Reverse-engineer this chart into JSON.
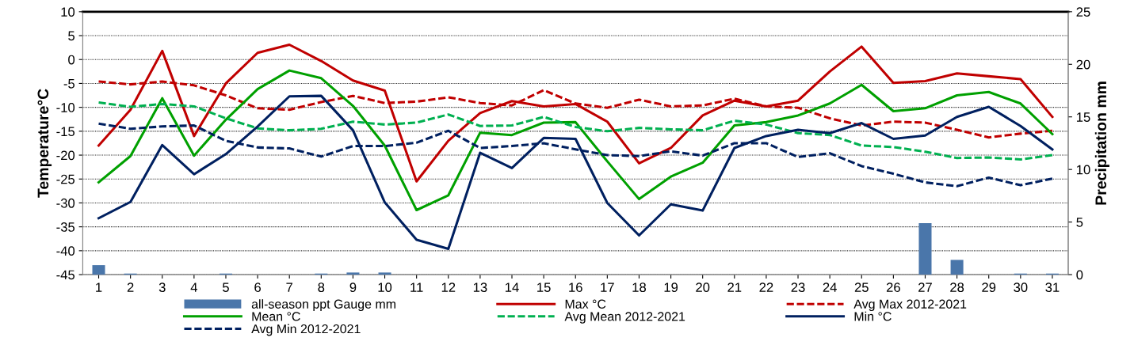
{
  "chart_data": {
    "type": "line",
    "ylabel": "Temperature°C",
    "y2label": "Precipitation mm",
    "categories": [
      "1",
      "2",
      "3",
      "4",
      "5",
      "6",
      "7",
      "8",
      "9",
      "10",
      "11",
      "12",
      "13",
      "14",
      "15",
      "16",
      "17",
      "18",
      "19",
      "20",
      "21",
      "22",
      "23",
      "24",
      "25",
      "26",
      "27",
      "28",
      "29",
      "30",
      "31"
    ],
    "ylim": [
      -45,
      10
    ],
    "yticks": [
      -45,
      -40,
      -35,
      -30,
      -25,
      -20,
      -15,
      -10,
      -5,
      0,
      5,
      10
    ],
    "y2lim": [
      0,
      25
    ],
    "y2ticks": [
      0,
      5,
      10,
      15,
      20,
      25
    ],
    "grid": "y",
    "legend": "bottom",
    "series": [
      {
        "name": "all-season ppt Gauge mm",
        "type": "bar",
        "axis": "y2",
        "color": "#4a76aa",
        "values": [
          0.9,
          0.1,
          0,
          0,
          0.1,
          0,
          0,
          0.1,
          0.2,
          0.2,
          0,
          0,
          0,
          0,
          0,
          0,
          0,
          0,
          0,
          0,
          0,
          0,
          0,
          0,
          0,
          0,
          4.9,
          1.4,
          0,
          0.1,
          0.1
        ]
      },
      {
        "name": "Max °C",
        "color": "#c00000",
        "line_style": "solid",
        "values": [
          -18,
          -10.5,
          1.8,
          -16,
          -5,
          1.4,
          3.1,
          -0.3,
          -4.4,
          -6.5,
          -25.5,
          -17,
          -11.2,
          -8.7,
          -9.8,
          -9.3,
          -13,
          -21.7,
          -18.5,
          -11.7,
          -8.6,
          -9.8,
          -8.6,
          -2.5,
          2.7,
          -4.9,
          -4.5,
          -2.9,
          -3.5,
          -4.1,
          -12
        ]
      },
      {
        "name": "Avg Max 2012-2021",
        "color": "#c00000",
        "line_style": "dashed",
        "values": [
          -4.6,
          -5.2,
          -4.6,
          -5.4,
          -7.5,
          -10.2,
          -10.5,
          -8.9,
          -7.6,
          -9.1,
          -8.8,
          -7.9,
          -9.1,
          -9.6,
          -6.4,
          -9.2,
          -10.1,
          -8.4,
          -9.8,
          -9.6,
          -8.2,
          -9.8,
          -10.1,
          -12.3,
          -13.8,
          -13,
          -13.2,
          -14.7,
          -16.3,
          -15.5,
          -14.9
        ]
      },
      {
        "name": "Mean °C",
        "color": "#00a000",
        "line_style": "solid",
        "values": [
          -25.7,
          -20.2,
          -8.1,
          -20.1,
          -12.6,
          -6.2,
          -2.3,
          -3.9,
          -9.7,
          -18,
          -31.5,
          -28.4,
          -15.3,
          -15.8,
          -13.2,
          -13.1,
          -21.3,
          -29.2,
          -24.5,
          -21.6,
          -13.8,
          -13.1,
          -11.7,
          -9.2,
          -5.3,
          -10.8,
          -10.2,
          -7.5,
          -6.8,
          -9.2,
          -15.6
        ]
      },
      {
        "name": "Avg Mean 2012-2021",
        "color": "#00b050",
        "line_style": "dashed",
        "values": [
          -9,
          -9.9,
          -9.3,
          -9.8,
          -12.3,
          -14.4,
          -14.8,
          -14.5,
          -13,
          -13.6,
          -13.2,
          -11.5,
          -13.9,
          -13.8,
          -12,
          -14.1,
          -15,
          -14.3,
          -14.6,
          -14.8,
          -12.8,
          -13.6,
          -15.4,
          -15.8,
          -18,
          -18.3,
          -19.3,
          -20.6,
          -20.5,
          -20.9,
          -20
        ]
      },
      {
        "name": "Min °C",
        "color": "#002060",
        "line_style": "solid",
        "values": [
          -33.2,
          -29.8,
          -17.9,
          -24,
          -19.8,
          -14,
          -7.7,
          -7.6,
          -14.8,
          -29.9,
          -37.7,
          -39.6,
          -19.5,
          -22.7,
          -16.4,
          -16.6,
          -30,
          -36.8,
          -30.3,
          -31.6,
          -18.5,
          -16,
          -14.7,
          -15.4,
          -13.3,
          -16.6,
          -15.9,
          -12,
          -9.9,
          -13.9,
          -18.8
        ]
      },
      {
        "name": "Avg Min 2012-2021",
        "color": "#002060",
        "line_style": "dashed",
        "values": [
          -13.4,
          -14.5,
          -14,
          -13.8,
          -17,
          -18.4,
          -18.6,
          -20.3,
          -18.1,
          -18.1,
          -17.4,
          -14.9,
          -18.5,
          -18.1,
          -17.5,
          -18.8,
          -20,
          -20.2,
          -19.2,
          -20.1,
          -17.5,
          -17.5,
          -20.4,
          -19.6,
          -22.3,
          -23.9,
          -25.7,
          -26.5,
          -24.7,
          -26.3,
          -24.9
        ]
      }
    ]
  }
}
